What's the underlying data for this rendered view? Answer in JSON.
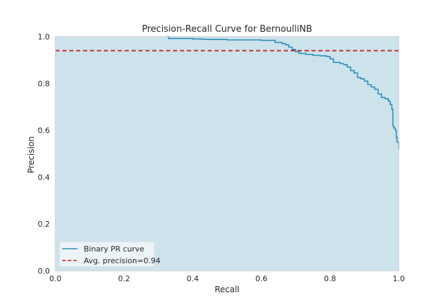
{
  "chart_data": {
    "type": "area",
    "title": "Precision-Recall Curve for BernoulliNB",
    "xlabel": "Recall",
    "ylabel": "Precision",
    "xlim": [
      0.0,
      1.0
    ],
    "ylim": [
      0.0,
      1.0
    ],
    "xticks": [
      "0.0",
      "0.2",
      "0.4",
      "0.6",
      "0.8",
      "1.0"
    ],
    "yticks": [
      "0.0",
      "0.2",
      "0.4",
      "0.6",
      "0.8",
      "1.0"
    ],
    "grid": false,
    "legend_position": "lower-left",
    "colors": {
      "curve": "#2a8fb8",
      "fill": "#cde3ec",
      "avg_line": "#c0151b",
      "frame": "#cccccc"
    },
    "series": [
      {
        "name": "Binary PR curve",
        "style": "step",
        "recall": [
          0.325,
          0.33,
          0.4,
          0.43,
          0.5,
          0.6,
          0.64,
          0.66,
          0.67,
          0.68,
          0.69,
          0.7,
          0.71,
          0.73,
          0.75,
          0.77,
          0.79,
          0.8,
          0.81,
          0.83,
          0.84,
          0.85,
          0.86,
          0.87,
          0.88,
          0.89,
          0.9,
          0.91,
          0.92,
          0.93,
          0.94,
          0.95,
          0.96,
          0.97,
          0.975,
          0.98,
          0.983,
          0.985,
          0.99,
          0.993,
          0.995,
          1.0
        ],
        "precision": [
          1.0,
          0.992,
          0.99,
          0.988,
          0.986,
          0.984,
          0.975,
          0.97,
          0.965,
          0.955,
          0.945,
          0.935,
          0.928,
          0.924,
          0.92,
          0.918,
          0.915,
          0.905,
          0.89,
          0.885,
          0.88,
          0.87,
          0.855,
          0.845,
          0.825,
          0.82,
          0.81,
          0.795,
          0.785,
          0.775,
          0.755,
          0.74,
          0.735,
          0.725,
          0.71,
          0.69,
          0.62,
          0.61,
          0.6,
          0.57,
          0.55,
          0.52
        ]
      },
      {
        "name": "Avg. precision=0.94",
        "style": "dashed",
        "value": 0.94
      }
    ]
  }
}
